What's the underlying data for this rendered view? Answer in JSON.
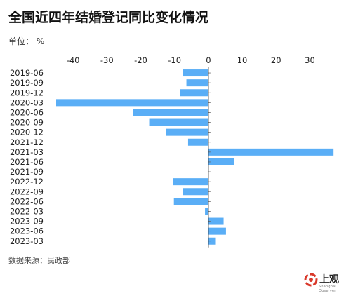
{
  "title": "全国近四年结婚登记同比变化情况",
  "unit": "单位： %",
  "source": "数据来源：民政部",
  "brand": {
    "name": "上观",
    "sub": "Shanghai Observer",
    "color": "#d9382a"
  },
  "chart_data": {
    "type": "bar",
    "orientation": "horizontal",
    "title": "全国近四年结婚登记同比变化情况",
    "xlabel": "",
    "ylabel": "",
    "unit": "%",
    "xlim": [
      -45,
      38
    ],
    "xticks": [
      -40,
      -30,
      -20,
      -10,
      0,
      10,
      20,
      30
    ],
    "bar_color": "#5aaef6",
    "grid": false,
    "categories": [
      "2019-06",
      "2019-09",
      "2019-12",
      "2020-03",
      "2020-06",
      "2020-09",
      "2020-12",
      "2021-12",
      "2021-03",
      "2021-06",
      "2021-09",
      "2022-12",
      "2022-09",
      "2022-06",
      "2022-03",
      "2023-09",
      "2023-06",
      "2023-03"
    ],
    "values": [
      -7.5,
      -6.5,
      -8.3,
      -45,
      -22.3,
      -17.5,
      -12.5,
      -6.0,
      37.0,
      7.5,
      0,
      -10.5,
      -7.5,
      -10.2,
      -1.0,
      4.5,
      5.2,
      2.0
    ]
  }
}
